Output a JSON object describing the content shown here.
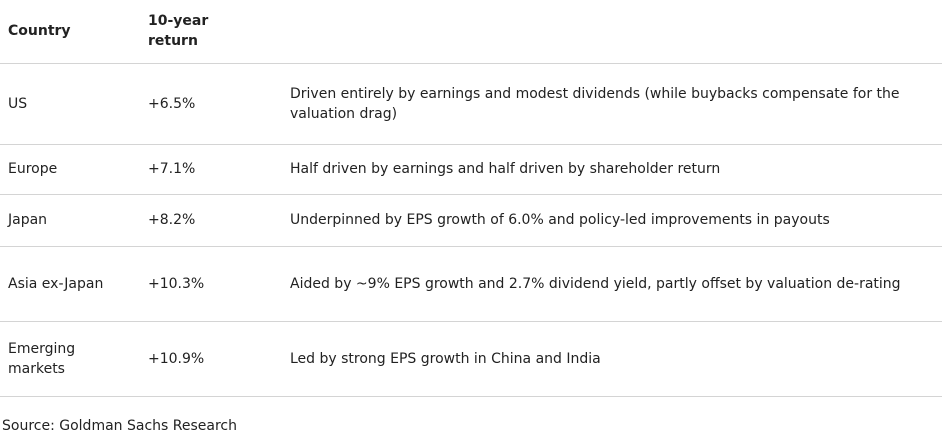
{
  "table": {
    "headers": [
      "Country",
      "10-year return"
    ],
    "rows": [
      [
        "US",
        "+6.5%",
        "Driven entirely by earnings and modest dividends (while buybacks compensate for the valuation drag)"
      ],
      [
        "Europe",
        "+7.1%",
        "Half driven by earnings and half driven by shareholder return"
      ],
      [
        "Japan",
        "+8.2%",
        "Underpinned by EPS growth of 6.0% and policy-led improvements in payouts"
      ],
      [
        "Asia ex-Japan",
        "+10.3%",
        "Aided by ~9% EPS growth and 2.7% dividend yield, partly offset by valuation de-rating"
      ],
      [
        "Emerging markets",
        "+10.9%",
        "Led by strong EPS growth in China and India"
      ]
    ]
  },
  "source": "Source: Goldman Sachs Research"
}
